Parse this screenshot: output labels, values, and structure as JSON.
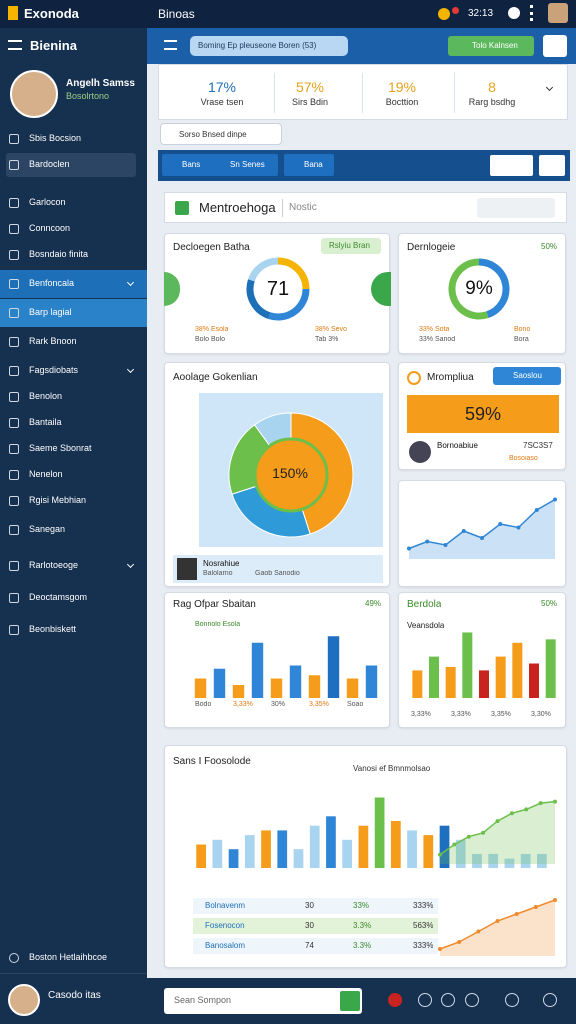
{
  "header": {
    "brand": "Exonoda",
    "window_title": "Binoas",
    "time": "32:13"
  },
  "sidebar": {
    "title": "Bienina",
    "profile": {
      "name": "Angelh Samss",
      "role": "Bosolrtono"
    },
    "items": [
      "Sbis Bocsion",
      "Bardoclen",
      "Garlocon",
      "Conncoon",
      "Bosndaio finita",
      "Benfoncala",
      "Barp lagial",
      "Rark Bnoon",
      "Fagsdiobats",
      "Benolon",
      "Bantaila",
      "Saeme Sbonrat",
      "Nenelon",
      "Rgisi Mebhian",
      "Sanegan",
      "Rarlotoeoge",
      "Deoctamsgom",
      "Beonbiskett"
    ],
    "footer": "Boston Hetlaihbcoe",
    "user": "Casodo itas"
  },
  "topbar": {
    "search": "Boming Ep pleuseone Boren (53)",
    "button": "Tolo Kalnsen"
  },
  "stats": [
    {
      "value": "17%",
      "label": "Vrase tsen"
    },
    {
      "value": "57%",
      "label": "Sirs Bdin"
    },
    {
      "value": "19%",
      "label": "Bocttion"
    },
    {
      "value": "8",
      "label": "Rarg bsdhg"
    }
  ],
  "filter": "Sorso Bnsed dinpe",
  "tabs": [
    "Bans",
    "Sn Senes",
    "Bana"
  ],
  "section": {
    "title": "Mentroehoga",
    "search": "Nostic"
  },
  "gauge_left": {
    "title": "Decloegen Batha",
    "badge": "Rslyiu Bran",
    "value": "71",
    "stats": [
      "38% Esola",
      "Bolo Bolo",
      "38% Sevo",
      "Tab 3%"
    ]
  },
  "gauge_right": {
    "title": "Dernlogeie",
    "badge": "50%",
    "value": "9%",
    "stats": [
      "33% Sota",
      "33% Sanod",
      "Bono",
      "Bora"
    ]
  },
  "pie_card": {
    "title": "Aoolage Gokenlian",
    "value": "150%",
    "person": "Nosrahiue",
    "detail": "Balolarno",
    "extra": "Gaob Sanodio",
    "chart": {
      "type": "pie",
      "values": [
        45,
        25,
        20,
        10
      ],
      "colors": [
        "#f59c1a",
        "#2e9bd8",
        "#6cbf4a",
        "#a8d4f0"
      ]
    }
  },
  "promo": {
    "title": "Mrompliua",
    "button": "Saoslou",
    "value": "59%",
    "person": "Bornoabiue",
    "code": "7SC3S7",
    "note": "Bosoiaso"
  },
  "line_right": {
    "type": "line",
    "color": "#2f86d6",
    "ylim": [
      0,
      100
    ],
    "values": [
      15,
      25,
      20,
      40,
      30,
      50,
      45,
      70,
      85
    ]
  },
  "bar_left": {
    "title": "Rag Ofpar Sbaitan",
    "badge": "49%",
    "legend": "Bonnolo Esola",
    "type": "bar",
    "ylim": [
      0,
      100
    ],
    "values": [
      30,
      45,
      20,
      85,
      30,
      50,
      35,
      95,
      30,
      50
    ],
    "colors": [
      "#f59c1a",
      "#2f86d6",
      "#f59c1a",
      "#2f86d6",
      "#f59c1a",
      "#2f86d6",
      "#f59c1a",
      "#1f6fc0",
      "#f59c1a",
      "#2f86d6"
    ],
    "labels": [
      "Bodo",
      "3,33%",
      "30%",
      "3,35%",
      "Soao"
    ]
  },
  "bar_right": {
    "title": "Berdola",
    "badge": "50%",
    "legend": "Veansdola",
    "type": "bar",
    "ylim": [
      0,
      100
    ],
    "values": [
      40,
      60,
      45,
      95,
      40,
      60,
      80,
      50,
      85
    ],
    "colors": [
      "#f59c1a",
      "#6cbf4a",
      "#f59c1a",
      "#6cbf4a",
      "#c9231f",
      "#f59c1a",
      "#f59c1a",
      "#c9231f",
      "#6cbf4a"
    ],
    "labels": [
      "3,33%",
      "3,33%",
      "3,35%",
      "3,30%"
    ]
  },
  "big": {
    "title": "Sans I Foosolode",
    "subtitle": "Vanosi ef Bmnmolsao",
    "bars": {
      "type": "bar",
      "ylim": [
        0,
        100
      ],
      "values": [
        25,
        30,
        20,
        35,
        40,
        40,
        20,
        45,
        55,
        30,
        45,
        75,
        50,
        40,
        35,
        45,
        30,
        15,
        15,
        10,
        15,
        15
      ],
      "colors": [
        "#f59c1a",
        "#a8d4f0",
        "#2f86d6",
        "#a8d4f0",
        "#f59c1a",
        "#2f86d6",
        "#a8d4f0",
        "#a8d4f0",
        "#2f86d6",
        "#a8d4f0",
        "#f59c1a",
        "#6cbf4a",
        "#f59c1a",
        "#a8d4f0",
        "#f59c1a",
        "#1f6fc0",
        "#a8d4f0",
        "#a8d4f0",
        "#a8d4f0",
        "#a8d4f0",
        "#a8d4f0",
        "#a8d4f0"
      ]
    },
    "line": {
      "type": "line",
      "color": "#6cbf4a",
      "ylim": [
        0,
        100
      ],
      "values": [
        12,
        25,
        35,
        40,
        55,
        65,
        70,
        78,
        80
      ]
    },
    "rows": [
      [
        "Bolnavenm",
        "30",
        "33%",
        "333%"
      ],
      [
        "Fosenocon",
        "30",
        "3.3%",
        "563%"
      ],
      [
        "Banosalom",
        "74",
        "3.3%",
        "333%"
      ]
    ],
    "area": {
      "type": "line",
      "color": "#f08a2c",
      "ylim": [
        0,
        100
      ],
      "values": [
        10,
        20,
        35,
        50,
        60,
        70,
        80
      ]
    }
  },
  "bottom": {
    "input": "Sean Sompon"
  }
}
